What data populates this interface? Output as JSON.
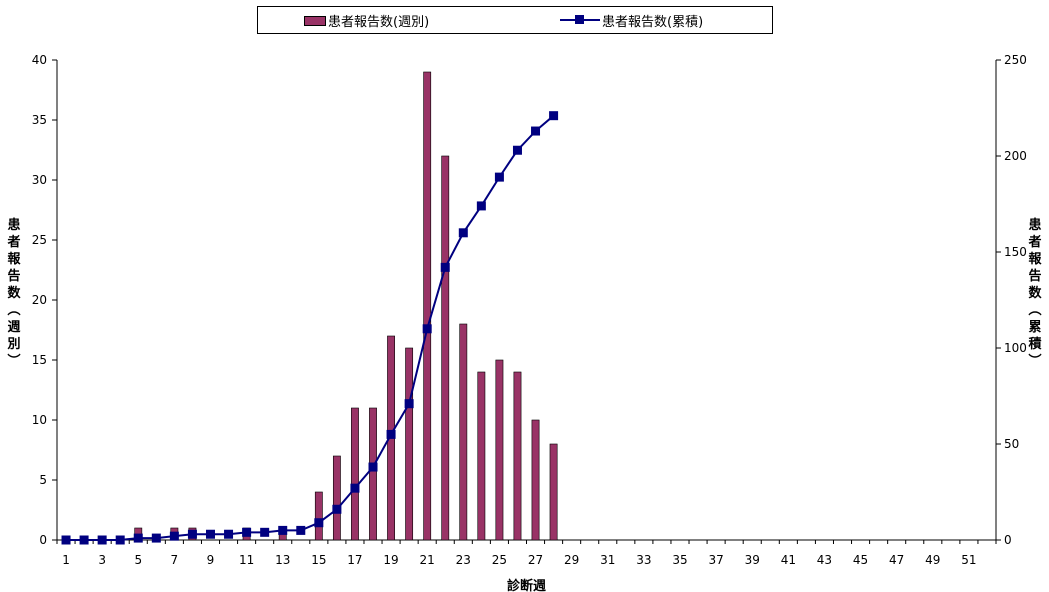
{
  "chart_data": {
    "type": "bar+line",
    "legend": {
      "weekly_label": "患者報告数(週別)",
      "cumulative_label": "患者報告数(累積)"
    },
    "xlabel": "診断週",
    "ylabel_left": "患者報告数(週別)",
    "ylabel_right": "患者報告数(累積)",
    "weeks_range": [
      1,
      52
    ],
    "x_tick_labels": [
      1,
      3,
      5,
      7,
      9,
      11,
      13,
      15,
      17,
      19,
      21,
      23,
      25,
      27,
      29,
      31,
      33,
      35,
      37,
      39,
      41,
      43,
      45,
      47,
      49,
      51
    ],
    "ylim_left": [
      0,
      40
    ],
    "yticks_left": [
      0,
      5,
      10,
      15,
      20,
      25,
      30,
      35,
      40
    ],
    "ylim_right": [
      0,
      250
    ],
    "yticks_right": [
      0,
      50,
      100,
      150,
      200,
      250
    ],
    "series": [
      {
        "name": "患者報告数(週別)",
        "type": "bar",
        "color": "#993366",
        "axis": "left",
        "weeks": [
          1,
          2,
          3,
          4,
          5,
          6,
          7,
          8,
          9,
          10,
          11,
          12,
          13,
          14,
          15,
          16,
          17,
          18,
          19,
          20,
          21,
          22,
          23,
          24,
          25,
          26,
          27,
          28
        ],
        "values": [
          0,
          0,
          0,
          0,
          1,
          0,
          1,
          1,
          0,
          0,
          1,
          0,
          1,
          0,
          4,
          7,
          11,
          11,
          17,
          16,
          39,
          32,
          18,
          14,
          15,
          14,
          10,
          8
        ]
      },
      {
        "name": "患者報告数(累積)",
        "type": "line",
        "color": "#000080",
        "axis": "right",
        "weeks": [
          1,
          2,
          3,
          4,
          5,
          6,
          7,
          8,
          9,
          10,
          11,
          12,
          13,
          14,
          15,
          16,
          17,
          18,
          19,
          20,
          21,
          22,
          23,
          24,
          25,
          26,
          27,
          28
        ],
        "values": [
          0,
          0,
          0,
          0,
          1,
          1,
          2,
          3,
          3,
          3,
          4,
          4,
          5,
          5,
          9,
          16,
          27,
          38,
          55,
          71,
          110,
          142,
          160,
          174,
          189,
          203,
          213,
          221
        ]
      }
    ],
    "grid": false,
    "legend_position": "top"
  }
}
